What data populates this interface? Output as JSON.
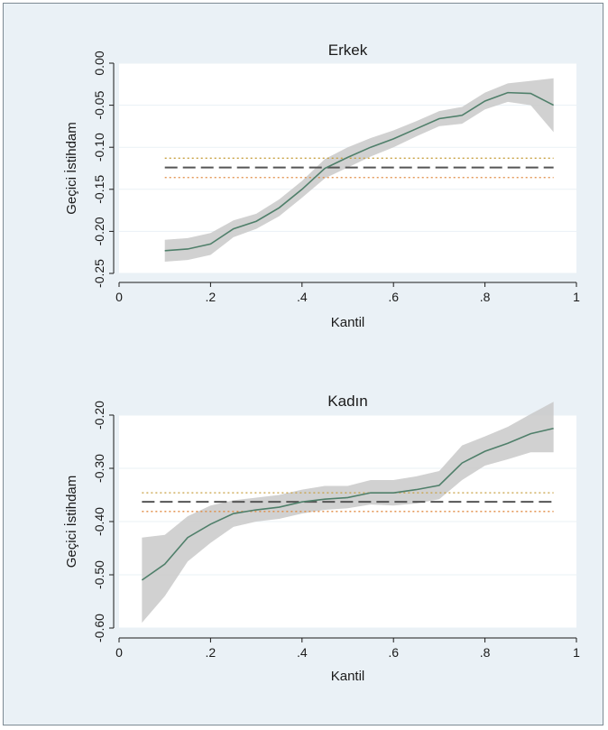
{
  "figure": {
    "background": "#eaf1f6",
    "plot_background": "#ffffff",
    "line_color": "#4f7f6a",
    "band_color": "#c9c9c9",
    "ols_dash_color": "#555555",
    "ols_ci_colors": [
      "#c8a040",
      "#e08a40"
    ]
  },
  "chart_data": [
    {
      "type": "line",
      "title": "Erkek",
      "xlabel": "Kantil",
      "ylabel": "Geçici İstihdam",
      "xlim": [
        0,
        1
      ],
      "ylim": [
        -0.25,
        0.0
      ],
      "xticks": [
        0,
        0.2,
        0.4,
        0.6,
        0.8,
        1
      ],
      "xtick_labels": [
        "0",
        ".2",
        ".4",
        ".6",
        ".8",
        "1"
      ],
      "yticks": [
        -0.25,
        -0.2,
        -0.15,
        -0.1,
        -0.05,
        0.0
      ],
      "ytick_labels": [
        "-0.25",
        "-0.20",
        "-0.15",
        "-0.10",
        "-0.05",
        "0.00"
      ],
      "grid": true,
      "series": [
        {
          "x": [
            0.1,
            0.15,
            0.2,
            0.25,
            0.3,
            0.35,
            0.4,
            0.45,
            0.5,
            0.55,
            0.6,
            0.65,
            0.7,
            0.75,
            0.8,
            0.85,
            0.9,
            0.95
          ],
          "y": [
            -0.223,
            -0.221,
            -0.215,
            -0.197,
            -0.188,
            -0.172,
            -0.15,
            -0.125,
            -0.112,
            -0.1,
            -0.09,
            -0.078,
            -0.066,
            -0.062,
            -0.045,
            -0.035,
            -0.036,
            -0.05
          ],
          "ci_low": [
            -0.236,
            -0.234,
            -0.228,
            -0.207,
            -0.197,
            -0.182,
            -0.16,
            -0.137,
            -0.124,
            -0.111,
            -0.1,
            -0.087,
            -0.075,
            -0.072,
            -0.055,
            -0.046,
            -0.05,
            -0.082
          ],
          "ci_high": [
            -0.21,
            -0.208,
            -0.202,
            -0.187,
            -0.179,
            -0.162,
            -0.14,
            -0.114,
            -0.1,
            -0.089,
            -0.08,
            -0.069,
            -0.057,
            -0.052,
            -0.035,
            -0.024,
            -0.021,
            -0.018
          ]
        }
      ],
      "ols": {
        "estimate": -0.124,
        "ci_low": -0.136,
        "ci_high": -0.113
      }
    },
    {
      "type": "line",
      "title": "Kadın",
      "xlabel": "Kantil",
      "ylabel": "Geçici İstihdam",
      "xlim": [
        0,
        1
      ],
      "ylim": [
        -0.6,
        -0.2
      ],
      "xticks": [
        0,
        0.2,
        0.4,
        0.6,
        0.8,
        1
      ],
      "xtick_labels": [
        "0",
        ".2",
        ".4",
        ".6",
        ".8",
        "1"
      ],
      "yticks": [
        -0.6,
        -0.5,
        -0.4,
        -0.3,
        -0.2
      ],
      "ytick_labels": [
        "-0.60",
        "-0.50",
        "-0.40",
        "-0.30",
        "-0.20"
      ],
      "grid": true,
      "series": [
        {
          "x": [
            0.05,
            0.1,
            0.15,
            0.2,
            0.25,
            0.3,
            0.35,
            0.4,
            0.45,
            0.5,
            0.55,
            0.6,
            0.65,
            0.7,
            0.75,
            0.8,
            0.85,
            0.9,
            0.95
          ],
          "y": [
            -0.51,
            -0.48,
            -0.43,
            -0.405,
            -0.385,
            -0.378,
            -0.373,
            -0.363,
            -0.358,
            -0.355,
            -0.346,
            -0.346,
            -0.34,
            -0.332,
            -0.29,
            -0.268,
            -0.253,
            -0.235,
            -0.225
          ],
          "ci_low": [
            -0.59,
            -0.54,
            -0.475,
            -0.44,
            -0.41,
            -0.4,
            -0.395,
            -0.385,
            -0.378,
            -0.375,
            -0.368,
            -0.37,
            -0.366,
            -0.358,
            -0.322,
            -0.295,
            -0.283,
            -0.27,
            -0.27
          ],
          "ci_high": [
            -0.43,
            -0.425,
            -0.39,
            -0.37,
            -0.36,
            -0.355,
            -0.35,
            -0.34,
            -0.333,
            -0.333,
            -0.322,
            -0.322,
            -0.315,
            -0.305,
            -0.257,
            -0.24,
            -0.222,
            -0.198,
            -0.175
          ]
        }
      ],
      "ols": {
        "estimate": -0.363,
        "ci_low": -0.381,
        "ci_high": -0.346
      }
    }
  ]
}
